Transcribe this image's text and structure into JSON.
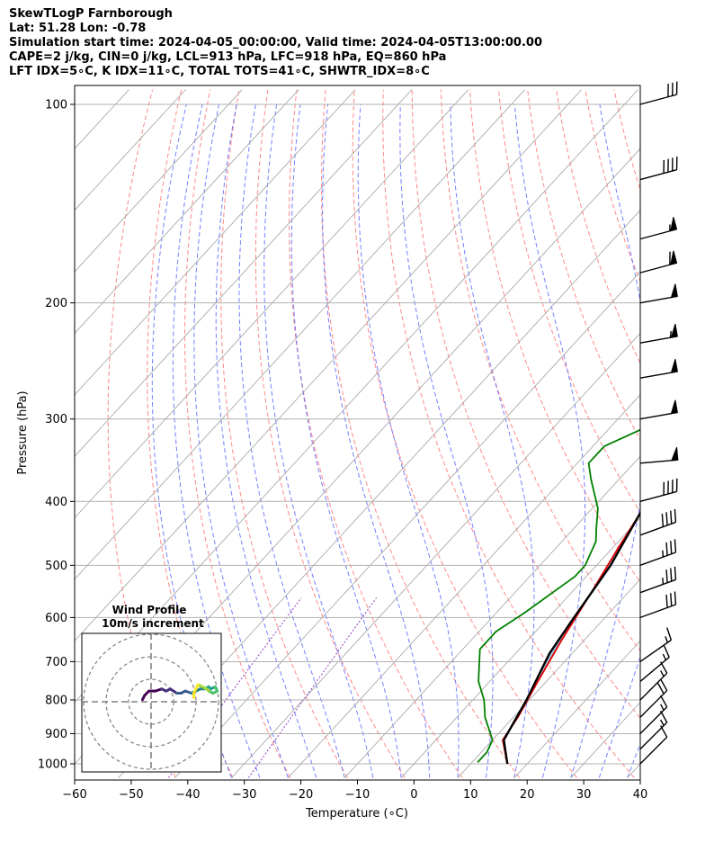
{
  "header": {
    "line1": "SkewTLogP Farnborough",
    "line2": "Lat: 51.28   Lon: -0.78",
    "line3": "Simulation start time: 2024-04-05_00:00:00, Valid time: 2024-04-05T13:00:00.00",
    "line4": "CAPE=2 j/kg, CIN=0 j/kg, LCL=913 hPa, LFC=918 hPa, EQ=860 hPa",
    "line5": "LFT IDX=5∘C, K IDX=11∘C, TOTAL TOTS=41∘C, SHWTR_IDX=8∘C"
  },
  "chart_data": {
    "type": "line",
    "xlabel": "Temperature (∘C)",
    "ylabel": "Pressure (hPa)",
    "xlim": [
      -60,
      40
    ],
    "ylim": [
      1050,
      100
    ],
    "y_scale": "log",
    "skew": true,
    "grid": true,
    "x_ticks": [
      -60,
      -50,
      -40,
      -30,
      -20,
      -10,
      0,
      10,
      20,
      30,
      40
    ],
    "y_ticks": [
      100,
      200,
      300,
      400,
      500,
      600,
      700,
      800,
      900,
      1000
    ],
    "colors": {
      "temperature": "#e00000",
      "dewpoint": "#008000",
      "parcel": "#000000",
      "cape_fill": "#a0c4df",
      "dry_adiabats": "#ff6060",
      "moist_adiabats": "#5060ff",
      "mixing_ratio": "#9040c0",
      "isotherms": "#aaaaaa"
    },
    "series": [
      {
        "key": "temperature",
        "points": [
          [
            16.5,
            1000
          ],
          [
            11.8,
            920
          ],
          [
            10.8,
            850
          ],
          [
            8.5,
            750
          ],
          [
            6.0,
            650
          ],
          [
            3.5,
            550
          ],
          [
            1.0,
            470
          ],
          [
            -1.0,
            410
          ],
          [
            -3.0,
            380
          ],
          [
            -8.0,
            320
          ],
          [
            -9.0,
            300
          ],
          [
            -17.0,
            240
          ],
          [
            -19.0,
            220
          ],
          [
            -18.0,
            200
          ],
          [
            -14.0,
            185
          ],
          [
            -5.0,
            165
          ],
          [
            -1.0,
            150
          ],
          [
            0.0,
            140
          ],
          [
            2.0,
            130
          ],
          [
            4.0,
            120
          ],
          [
            6.0,
            110
          ],
          [
            7.0,
            105
          ],
          [
            9.0,
            100
          ]
        ]
      },
      {
        "key": "dewpoint",
        "points": [
          [
            11.0,
            995
          ],
          [
            11.0,
            960
          ],
          [
            10.0,
            920
          ],
          [
            5.0,
            850
          ],
          [
            2.0,
            800
          ],
          [
            -2.0,
            750
          ],
          [
            -7.0,
            670
          ],
          [
            -7.0,
            630
          ],
          [
            -5.0,
            590
          ],
          [
            -2.0,
            520
          ],
          [
            -2.0,
            500
          ],
          [
            -4.0,
            460
          ],
          [
            -6.0,
            440
          ],
          [
            -9.0,
            410
          ],
          [
            -15.0,
            370
          ],
          [
            -18.0,
            350
          ],
          [
            -18.0,
            330
          ],
          [
            -14.0,
            310
          ],
          [
            -13.0,
            300
          ],
          [
            -16.0,
            280
          ],
          [
            -16.0,
            260
          ],
          [
            -18.0,
            240
          ],
          [
            -20.0,
            220
          ],
          [
            -20.0,
            210
          ],
          [
            -19.0,
            200
          ],
          [
            -20.0,
            180
          ],
          [
            -24.0,
            165
          ],
          [
            -20.0,
            150
          ],
          [
            -15.0,
            140
          ],
          [
            -8.0,
            130
          ],
          [
            -4.0,
            120
          ],
          [
            0.0,
            110
          ],
          [
            2.0,
            100
          ]
        ]
      },
      {
        "key": "parcel",
        "points": [
          [
            16.5,
            1000
          ],
          [
            12.0,
            920
          ],
          [
            9.5,
            800
          ],
          [
            6.0,
            680
          ],
          [
            4.5,
            600
          ],
          [
            2.5,
            500
          ],
          [
            -1.5,
            400
          ],
          [
            -3.9,
            300
          ],
          [
            -9.5,
            200
          ],
          [
            -11.0,
            150
          ],
          [
            -12.3,
            100
          ]
        ]
      }
    ],
    "wind_barbs": [
      {
        "p": 100,
        "dir": 255,
        "speed_kt": 30
      },
      {
        "p": 130,
        "dir": 255,
        "speed_kt": 40
      },
      {
        "p": 160,
        "dir": 255,
        "speed_kt": 55
      },
      {
        "p": 180,
        "dir": 255,
        "speed_kt": 60
      },
      {
        "p": 200,
        "dir": 260,
        "speed_kt": 50
      },
      {
        "p": 230,
        "dir": 260,
        "speed_kt": 55
      },
      {
        "p": 260,
        "dir": 260,
        "speed_kt": 50
      },
      {
        "p": 300,
        "dir": 260,
        "speed_kt": 50
      },
      {
        "p": 350,
        "dir": 265,
        "speed_kt": 50
      },
      {
        "p": 400,
        "dir": 255,
        "speed_kt": 40
      },
      {
        "p": 450,
        "dir": 250,
        "speed_kt": 40
      },
      {
        "p": 500,
        "dir": 250,
        "speed_kt": 35
      },
      {
        "p": 550,
        "dir": 250,
        "speed_kt": 35
      },
      {
        "p": 600,
        "dir": 250,
        "speed_kt": 30
      },
      {
        "p": 700,
        "dir": 235,
        "speed_kt": 15
      },
      {
        "p": 750,
        "dir": 230,
        "speed_kt": 15
      },
      {
        "p": 800,
        "dir": 225,
        "speed_kt": 15
      },
      {
        "p": 850,
        "dir": 225,
        "speed_kt": 20
      },
      {
        "p": 900,
        "dir": 225,
        "speed_kt": 15
      },
      {
        "p": 950,
        "dir": 225,
        "speed_kt": 15
      },
      {
        "p": 1000,
        "dir": 225,
        "speed_kt": 10
      }
    ],
    "hodograph": {
      "title": "Wind Profile",
      "subtitle": "10m/s increment",
      "ring_spacing_ms": 10,
      "points": [
        [
          -4,
          1
        ],
        [
          -3,
          3
        ],
        [
          -1,
          5
        ],
        [
          2,
          5
        ],
        [
          5,
          6
        ],
        [
          7,
          5
        ],
        [
          9,
          6
        ],
        [
          12,
          4
        ],
        [
          14,
          4
        ],
        [
          16,
          5
        ],
        [
          19,
          4
        ],
        [
          21,
          5
        ],
        [
          23,
          6
        ],
        [
          25,
          6
        ],
        [
          27,
          7
        ],
        [
          28,
          6
        ],
        [
          30,
          7
        ],
        [
          31,
          5
        ],
        [
          29,
          4
        ],
        [
          27,
          5
        ],
        [
          26,
          6
        ],
        [
          24,
          7
        ],
        [
          22,
          8
        ],
        [
          21,
          6
        ],
        [
          20,
          4
        ],
        [
          20,
          2
        ]
      ]
    }
  }
}
